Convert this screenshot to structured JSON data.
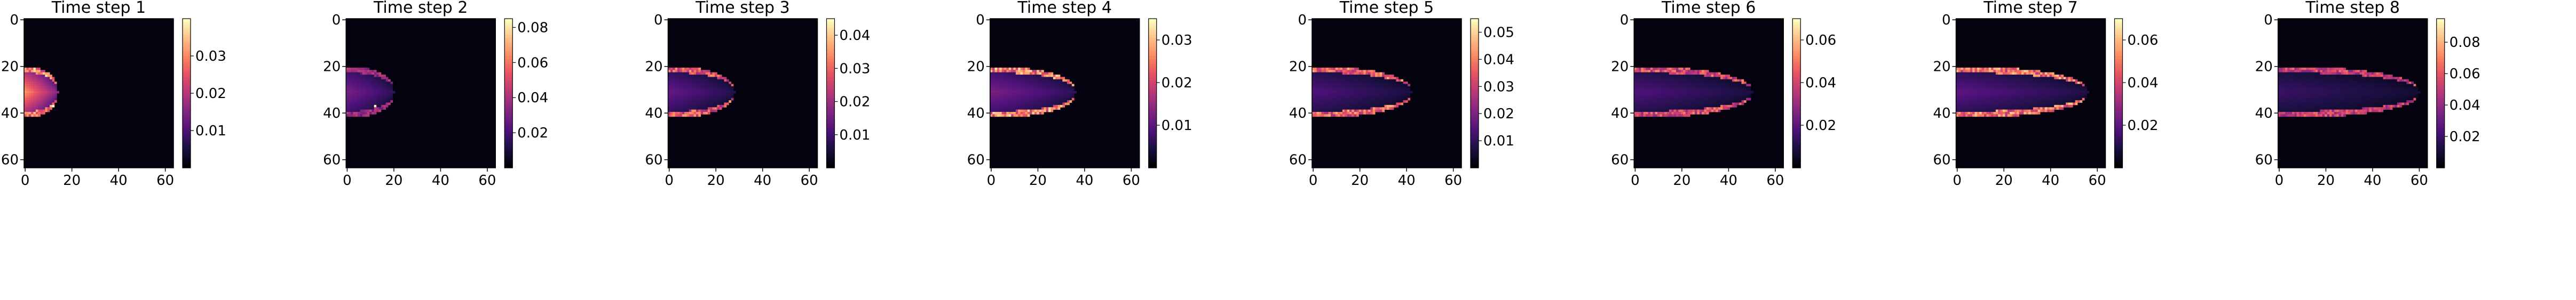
{
  "chart_data": {
    "type": "heatmap",
    "colormap": "magma",
    "grid": false,
    "xlim": [
      0,
      63
    ],
    "ylim": [
      63,
      0
    ],
    "x_ticks": [
      "0",
      "20",
      "40",
      "60"
    ],
    "y_ticks": [
      "0",
      "20",
      "40",
      "60"
    ],
    "panels": [
      {
        "title": "Time step 1",
        "vmax": 0.04,
        "cbar_ticks": [
          "0.01",
          "0.02",
          "0.03"
        ],
        "extent": 14,
        "bright": 0.78,
        "rim": 0.95,
        "spots": 1
      },
      {
        "title": "Time step 2",
        "vmax": 0.085,
        "cbar_ticks": [
          "0.02",
          "0.04",
          "0.06",
          "0.08"
        ],
        "extent": 20,
        "bright": 0.35,
        "rim": 0.55,
        "spots": 1
      },
      {
        "title": "Time step 3",
        "vmax": 0.045,
        "cbar_ticks": [
          "0.01",
          "0.02",
          "0.03",
          "0.04"
        ],
        "extent": 28,
        "bright": 0.3,
        "rim": 0.8,
        "spots": 0
      },
      {
        "title": "Time step 4",
        "vmax": 0.035,
        "cbar_ticks": [
          "0.01",
          "0.02",
          "0.03"
        ],
        "extent": 36,
        "bright": 0.35,
        "rim": 0.95,
        "spots": 0
      },
      {
        "title": "Time step 5",
        "vmax": 0.055,
        "cbar_ticks": [
          "0.01",
          "0.02",
          "0.03",
          "0.04",
          "0.05"
        ],
        "extent": 42,
        "bright": 0.25,
        "rim": 0.85,
        "spots": 0
      },
      {
        "title": "Time step 6",
        "vmax": 0.07,
        "cbar_ticks": [
          "0.02",
          "0.04",
          "0.06"
        ],
        "extent": 50,
        "bright": 0.25,
        "rim": 0.75,
        "spots": 0
      },
      {
        "title": "Time step 7",
        "vmax": 0.07,
        "cbar_ticks": [
          "0.02",
          "0.04",
          "0.06"
        ],
        "extent": 56,
        "bright": 0.28,
        "rim": 0.9,
        "spots": 0
      },
      {
        "title": "Time step 8",
        "vmax": 0.095,
        "cbar_ticks": [
          "0.02",
          "0.04",
          "0.06",
          "0.08"
        ],
        "extent": 60,
        "bright": 0.2,
        "rim": 0.7,
        "spots": 0
      }
    ]
  }
}
